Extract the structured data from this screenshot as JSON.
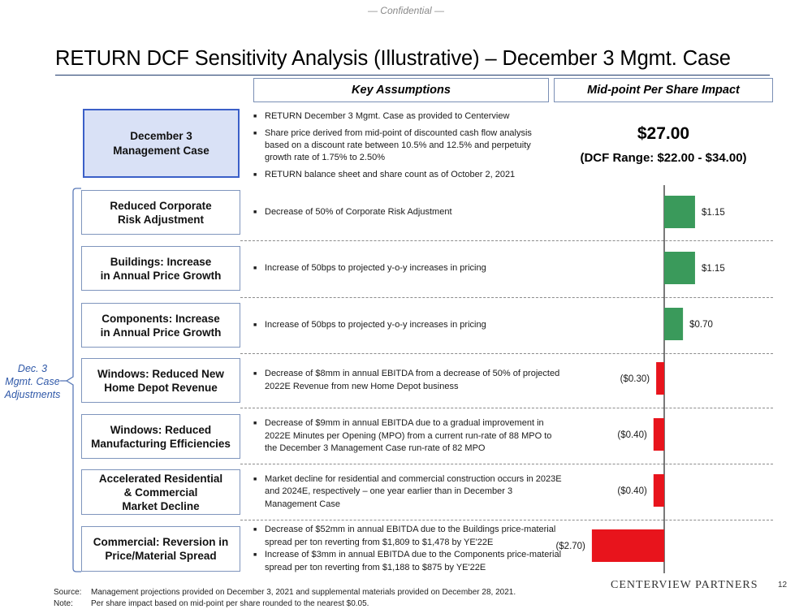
{
  "header": {
    "confidential": "— Confidential —",
    "title": "RETURN DCF Sensitivity Analysis (Illustrative) – December 3 Mgmt. Case"
  },
  "columns": {
    "key_assumptions": "Key Assumptions",
    "midpoint_impact": "Mid-point Per Share Impact"
  },
  "base_case": {
    "label_line1": "December 3",
    "label_line2": "Management Case",
    "bullets": [
      "RETURN December 3 Mgmt. Case as provided to Centerview",
      "Share price derived from mid-point of discounted cash flow analysis based on a discount rate between 10.5% and 12.5% and perpetuity growth rate of 1.75% to 2.50%",
      "RETURN balance sheet and share count as of October 2, 2021"
    ],
    "value": "$27.00",
    "range": "(DCF Range: $22.00 - $34.00)"
  },
  "adjustments_group_label": {
    "line1": "Dec. 3",
    "line2": "Mgmt. Case",
    "line3": "Adjustments"
  },
  "adjustments": [
    {
      "label_line1": "Reduced Corporate",
      "label_line2": "Risk Adjustment",
      "label_line3": "",
      "bullets": [
        "Decrease of 50% of Corporate Risk Adjustment"
      ]
    },
    {
      "label_line1": "Buildings: Increase",
      "label_line2": "in Annual Price Growth",
      "label_line3": "",
      "bullets": [
        "Increase of 50bps to projected y-o-y increases in pricing"
      ]
    },
    {
      "label_line1": "Components: Increase",
      "label_line2": "in Annual Price Growth",
      "label_line3": "",
      "bullets": [
        "Increase of 50bps to projected y-o-y increases in pricing"
      ]
    },
    {
      "label_line1": "Windows: Reduced New",
      "label_line2": "Home Depot Revenue",
      "label_line3": "",
      "bullets": [
        "Decrease of $8mm in annual EBITDA from a decrease of 50% of projected 2022E Revenue from new Home Depot business"
      ]
    },
    {
      "label_line1": "Windows: Reduced",
      "label_line2": "Manufacturing Efficiencies",
      "label_line3": "",
      "bullets": [
        "Decrease of $9mm in annual EBITDA due to a gradual improvement in 2022E Minutes per Opening (MPO) from a current run-rate of 88 MPO to the December 3 Management Case run-rate of 82 MPO"
      ]
    },
    {
      "label_line1": "Accelerated Residential",
      "label_line2": "& Commercial",
      "label_line3": "Market Decline",
      "bullets": [
        "Market decline for residential and commercial construction occurs in 2023E and 2024E, respectively – one year earlier than in December 3 Management Case"
      ]
    },
    {
      "label_line1": "Commercial: Reversion in",
      "label_line2": "Price/Material Spread",
      "label_line3": "",
      "bullets": [
        "Decrease of $52mm in annual EBITDA due to the Buildings price-material spread per ton reverting from $1,809 to $1,478 by YE'22E",
        "Increase of $3mm in annual EBITDA due to the Components price-material spread per ton reverting from $1,188 to $875 by YE'22E"
      ]
    }
  ],
  "chart_data": {
    "type": "bar",
    "orientation": "horizontal",
    "title": "Mid-point Per Share Impact",
    "categories": [
      "Reduced Corporate Risk Adjustment",
      "Buildings: Increase in Annual Price Growth",
      "Components: Increase in Annual Price Growth",
      "Windows: Reduced New Home Depot Revenue",
      "Windows: Reduced Manufacturing Efficiencies",
      "Accelerated Residential & Commercial Market Decline",
      "Commercial: Reversion in Price/Material Spread"
    ],
    "values": [
      1.15,
      1.15,
      0.7,
      -0.3,
      -0.4,
      -0.4,
      -2.7
    ],
    "labels": [
      "$1.15",
      "$1.15",
      "$0.70",
      "($0.30)",
      "($0.40)",
      "($0.40)",
      "($2.70)"
    ],
    "colors": {
      "positive": "#3a9a5b",
      "negative": "#e8141c",
      "baseline": "#333333"
    },
    "xlim": [
      -2.7,
      1.15
    ],
    "baseline_value": 0
  },
  "footer": {
    "source_key": "Source:",
    "source_text": "Management projections provided on December 3, 2021 and supplemental materials provided on December 28, 2021.",
    "note_key": "Note:",
    "note_text": "Per share impact based on mid-point per share rounded to the nearest $0.05.",
    "logo": "CENTERVIEW PARTNERS",
    "page": "12"
  }
}
